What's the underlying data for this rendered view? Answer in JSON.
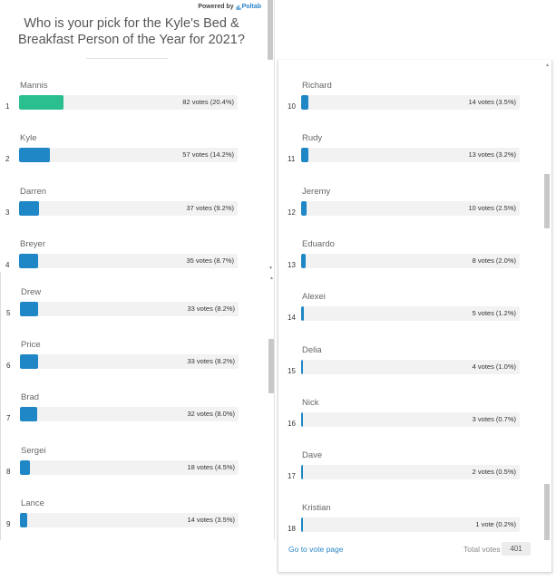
{
  "powered": {
    "label": "Powered by",
    "brand": "Poltab"
  },
  "question": "Who is your pick for the Kyle's Bed & Breakfast Person of the Year for 2021?",
  "colors": {
    "leader": "#2bbf8f",
    "bar": "#1f87c6",
    "track": "#f2f2f2",
    "link": "#2a86c8"
  },
  "options": [
    {
      "rank": "1",
      "name": "Mannis",
      "votes_text": "82 votes (20.4%)",
      "pct": 20.4
    },
    {
      "rank": "2",
      "name": "Kyle",
      "votes_text": "57 votes (14.2%)",
      "pct": 14.2
    },
    {
      "rank": "3",
      "name": "Darren",
      "votes_text": "37 votes (9.2%)",
      "pct": 9.2
    },
    {
      "rank": "4",
      "name": "Breyer",
      "votes_text": "35 votes (8.7%)",
      "pct": 8.7
    },
    {
      "rank": "5",
      "name": "Drew",
      "votes_text": "33 votes (8.2%)",
      "pct": 8.2
    },
    {
      "rank": "6",
      "name": "Price",
      "votes_text": "33 votes (8.2%)",
      "pct": 8.2
    },
    {
      "rank": "7",
      "name": "Brad",
      "votes_text": "32 votes (8.0%)",
      "pct": 8.0
    },
    {
      "rank": "8",
      "name": "Sergei",
      "votes_text": "18 votes (4.5%)",
      "pct": 4.5
    },
    {
      "rank": "9",
      "name": "Lance",
      "votes_text": "14 votes (3.5%)",
      "pct": 3.5
    },
    {
      "rank": "10",
      "name": "Richard",
      "votes_text": "14 votes (3.5%)",
      "pct": 3.5
    },
    {
      "rank": "11",
      "name": "Rudy",
      "votes_text": "13 votes (3.2%)",
      "pct": 3.2
    },
    {
      "rank": "12",
      "name": "Jeremy",
      "votes_text": "10 votes (2.5%)",
      "pct": 2.5
    },
    {
      "rank": "13",
      "name": "Eduardo",
      "votes_text": "8 votes (2.0%)",
      "pct": 2.0
    },
    {
      "rank": "14",
      "name": "Alexei",
      "votes_text": "5 votes (1.2%)",
      "pct": 1.2
    },
    {
      "rank": "15",
      "name": "Delia",
      "votes_text": "4 votes (1.0%)",
      "pct": 1.0
    },
    {
      "rank": "16",
      "name": "Nick",
      "votes_text": "3 votes (0.7%)",
      "pct": 0.7
    },
    {
      "rank": "17",
      "name": "Dave",
      "votes_text": "2 votes (0.5%)",
      "pct": 0.5
    },
    {
      "rank": "18",
      "name": "Kristian",
      "votes_text": "1 vote (0.2%)",
      "pct": 0.2
    }
  ],
  "footer": {
    "vote_link": "Go to vote page",
    "total_label": "Total votes",
    "total_value": "401"
  }
}
